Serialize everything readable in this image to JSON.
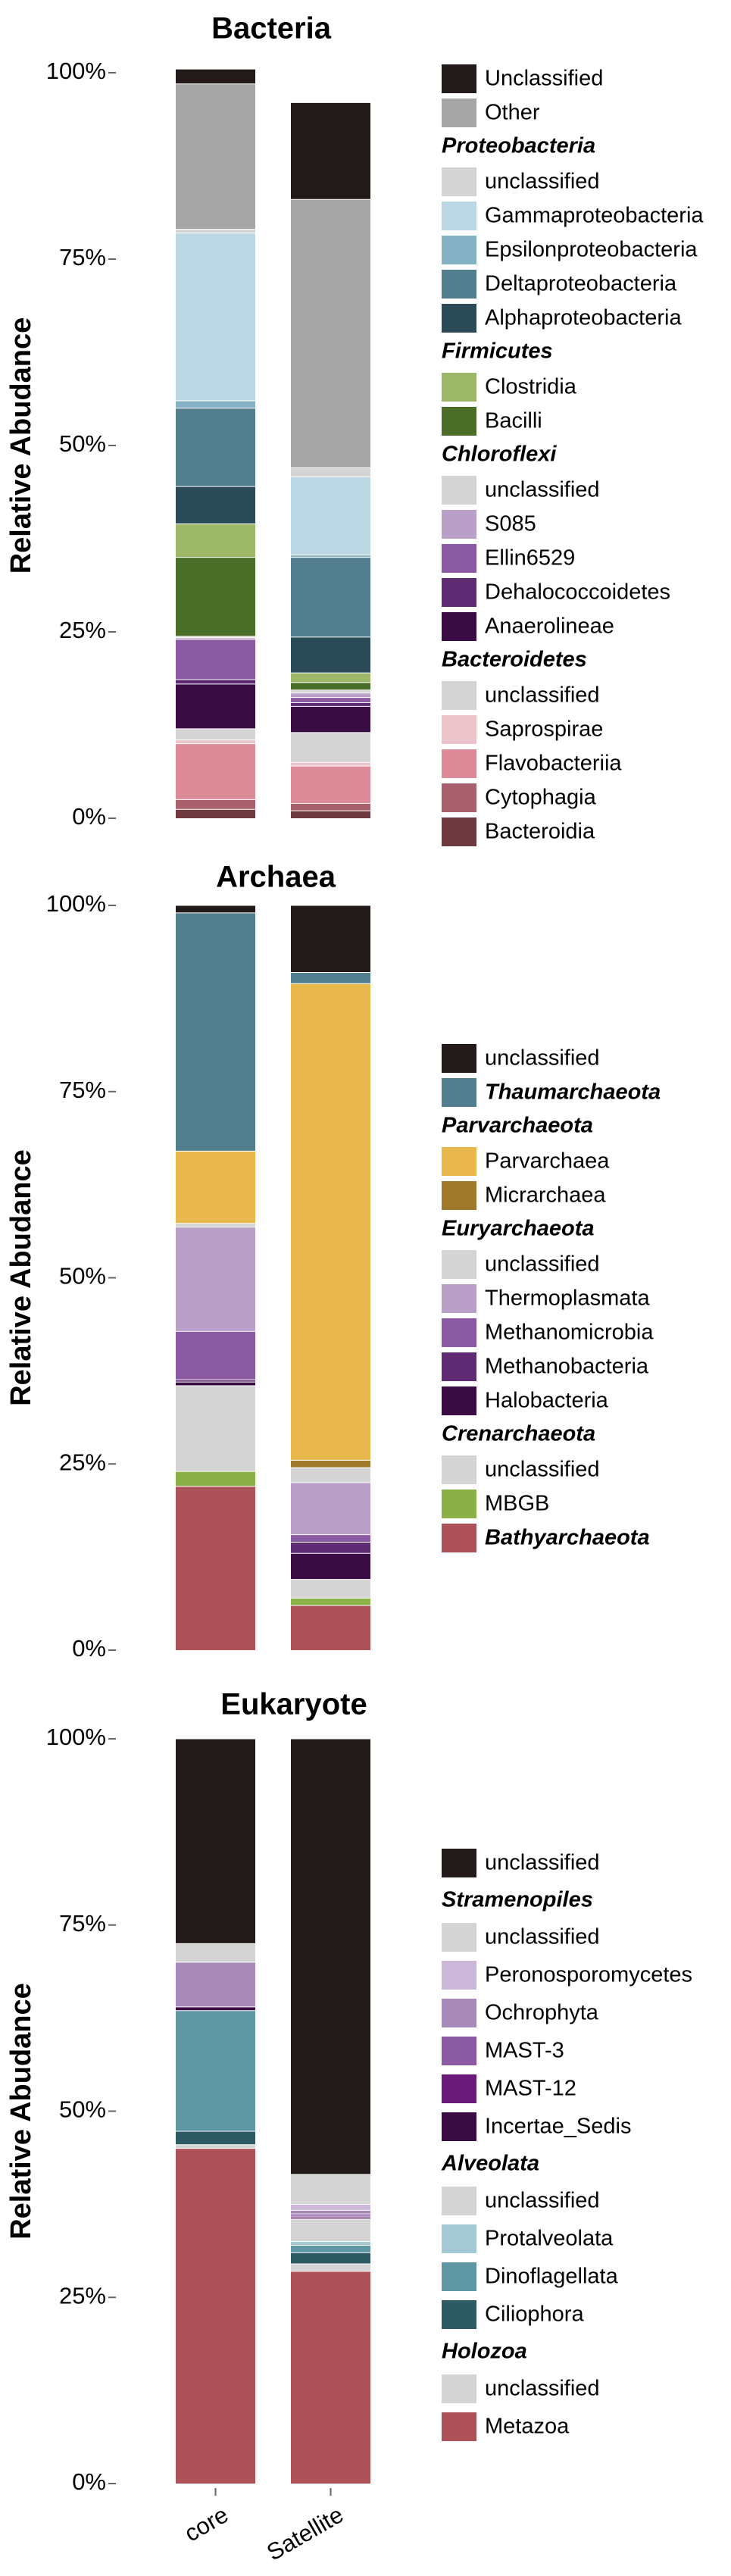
{
  "chart_data": [
    {
      "type": "bar",
      "title": "Bacteria",
      "ylabel": "Relative Abudance",
      "categories": [
        "core",
        "Satellite"
      ],
      "yticks": [
        "0%",
        "25%",
        "50%",
        "75%",
        "100%"
      ],
      "ylim": [
        0,
        100
      ],
      "series": [
        {
          "name": "Bacteroidia",
          "group": "Bacteroidetes",
          "color": "#6e3a40",
          "values": [
            1.2,
            1.0
          ]
        },
        {
          "name": "Cytophagia",
          "group": "Bacteroidetes",
          "color": "#a8606c",
          "values": [
            1.3,
            1.0
          ]
        },
        {
          "name": "Flavobacteriia",
          "group": "Bacteroidetes",
          "color": "#dc8a98",
          "values": [
            7.5,
            5.0
          ]
        },
        {
          "name": "Saprospirae",
          "group": "Bacteroidetes",
          "color": "#ecc5cc",
          "values": [
            0.5,
            0.5
          ]
        },
        {
          "name": "unclassified",
          "group": "Bacteroidetes",
          "color": "#d4d4d4",
          "values": [
            1.5,
            4.0
          ]
        },
        {
          "name": "Anaerolineae",
          "group": "Chloroflexi",
          "color": "#3a0c44",
          "values": [
            6.0,
            3.5
          ]
        },
        {
          "name": "Dehalococcoidetes",
          "group": "Chloroflexi",
          "color": "#5e2a72",
          "values": [
            0.6,
            0.5
          ]
        },
        {
          "name": "Ellin6529",
          "group": "Chloroflexi",
          "color": "#8a5aa2",
          "values": [
            5.4,
            0.7
          ]
        },
        {
          "name": "S085",
          "group": "Chloroflexi",
          "color": "#b8a0c8",
          "values": [
            0.2,
            0.6
          ]
        },
        {
          "name": "unclassified",
          "group": "Chloroflexi",
          "color": "#d4d4d4",
          "values": [
            0.2,
            0.4
          ]
        },
        {
          "name": "Bacilli",
          "group": "Firmicutes",
          "color": "#4a6e28",
          "values": [
            10.6,
            1.0
          ]
        },
        {
          "name": "Clostridia",
          "group": "Firmicutes",
          "color": "#9cb868",
          "values": [
            4.5,
            1.3
          ]
        },
        {
          "name": "Alphaproteobacteria",
          "group": "Proteobacteria",
          "color": "#2a4a58",
          "values": [
            5.0,
            4.8
          ]
        },
        {
          "name": "Deltaproteobacteria",
          "group": "Proteobacteria",
          "color": "#527e90",
          "values": [
            10.5,
            10.7
          ]
        },
        {
          "name": "Epsilonproteobacteria",
          "group": "Proteobacteria",
          "color": "#84b2c4",
          "values": [
            1.0,
            0.3
          ]
        },
        {
          "name": "Gammaproteobacteria",
          "group": "Proteobacteria",
          "color": "#bcd8e4",
          "values": [
            22.5,
            10.5
          ]
        },
        {
          "name": "unclassified",
          "group": "Proteobacteria",
          "color": "#d4d4d4",
          "values": [
            0.5,
            1.2
          ]
        },
        {
          "name": "Other",
          "group": "",
          "color": "#a6a6a6",
          "values": [
            19.5,
            36.0
          ]
        },
        {
          "name": "Unclassified",
          "group": "",
          "color": "#221a18",
          "values": [
            2.0,
            13.0
          ]
        }
      ]
    },
    {
      "type": "bar",
      "title": "Archaea",
      "ylabel": "Relative Abudance",
      "categories": [
        "core",
        "Satellite"
      ],
      "yticks": [
        "0%",
        "25%",
        "50%",
        "75%",
        "100%"
      ],
      "ylim": [
        0,
        100
      ],
      "series": [
        {
          "name": "Bathyarchaeota",
          "group": "",
          "emphasis": true,
          "color": "#ad5258",
          "values": [
            22.0,
            6.0
          ]
        },
        {
          "name": "MBGB",
          "group": "Crenarchaeota",
          "color": "#8cb048",
          "values": [
            2.0,
            1.0
          ]
        },
        {
          "name": "unclassified",
          "group": "Crenarchaeota",
          "color": "#d4d4d4",
          "values": [
            11.5,
            2.5
          ]
        },
        {
          "name": "Halobacteria",
          "group": "Euryarchaeota",
          "color": "#3a0c44",
          "values": [
            0.5,
            3.5
          ]
        },
        {
          "name": "Methanobacteria",
          "group": "Euryarchaeota",
          "color": "#5e2a72",
          "values": [
            0.3,
            1.5
          ]
        },
        {
          "name": "Methanomicrobia",
          "group": "Euryarchaeota",
          "color": "#8a5aa2",
          "values": [
            6.5,
            1.0
          ]
        },
        {
          "name": "Thermoplasmata",
          "group": "Euryarchaeota",
          "color": "#b8a0c8",
          "values": [
            14.0,
            7.0
          ]
        },
        {
          "name": "unclassified",
          "group": "Euryarchaeota",
          "color": "#d4d4d4",
          "values": [
            0.5,
            2.0
          ]
        },
        {
          "name": "Micrarchaea",
          "group": "Parvarchaeota",
          "color": "#a07a2a",
          "values": [
            0.0,
            1.0
          ]
        },
        {
          "name": "Parvarchaea",
          "group": "Parvarchaeota",
          "color": "#e8b84c",
          "values": [
            9.7,
            64.0
          ]
        },
        {
          "name": "Thaumarchaeota",
          "group": "",
          "emphasis": true,
          "color": "#527e90",
          "values": [
            32.0,
            1.5
          ]
        },
        {
          "name": "unclassified",
          "group": "",
          "color": "#221a18",
          "values": [
            1.0,
            9.0
          ]
        }
      ]
    },
    {
      "type": "bar",
      "title": "Eukaryote",
      "ylabel": "Relative Abudance",
      "categories": [
        "core",
        "Satellite"
      ],
      "yticks": [
        "0%",
        "25%",
        "50%",
        "75%",
        "100%"
      ],
      "ylim": [
        0,
        100
      ],
      "series": [
        {
          "name": "Metazoa",
          "group": "Holozoa",
          "color": "#ad5258",
          "values": [
            45.0,
            28.5
          ]
        },
        {
          "name": "unclassified",
          "group": "Holozoa",
          "color": "#d4d4d4",
          "values": [
            0.5,
            1.0
          ]
        },
        {
          "name": "Ciliophora",
          "group": "Alveolata",
          "color": "#2e5a64",
          "values": [
            1.8,
            1.5
          ]
        },
        {
          "name": "Dinoflagellata",
          "group": "Alveolata",
          "color": "#5e96a4",
          "values": [
            16.2,
            1.0
          ]
        },
        {
          "name": "Protalveolata",
          "group": "Alveolata",
          "color": "#a4c8d4",
          "values": [
            0.0,
            0.5
          ]
        },
        {
          "name": "unclassified",
          "group": "Alveolata",
          "color": "#d4d4d4",
          "values": [
            0.0,
            3.0
          ]
        },
        {
          "name": "Incertae_Sedis",
          "group": "Stramenopiles",
          "color": "#3a0c44",
          "values": [
            0.5,
            0.2
          ]
        },
        {
          "name": "MAST-12",
          "group": "Stramenopiles",
          "color": "#6a1a78",
          "values": [
            0.0,
            0.2
          ]
        },
        {
          "name": "MAST-3",
          "group": "Stramenopiles",
          "color": "#8a5aa2",
          "values": [
            0.0,
            0.3
          ]
        },
        {
          "name": "Ochrophyta",
          "group": "Stramenopiles",
          "color": "#a88ab8",
          "values": [
            6.0,
            0.5
          ]
        },
        {
          "name": "Peronosporomycetes",
          "group": "Stramenopiles",
          "color": "#cbb8d8",
          "values": [
            0.0,
            0.8
          ]
        },
        {
          "name": "unclassified",
          "group": "Stramenopiles",
          "color": "#d4d4d4",
          "values": [
            2.5,
            4.0
          ]
        },
        {
          "name": "unclassified",
          "group": "",
          "color": "#221a18",
          "values": [
            27.5,
            58.5
          ]
        }
      ]
    }
  ],
  "legends": [
    {
      "blocks": [
        {
          "items": [
            {
              "label": "Unclassified",
              "color": "#221a18"
            },
            {
              "label": "Other",
              "color": "#a6a6a6"
            }
          ]
        },
        {
          "heading": "Proteobacteria",
          "items": [
            {
              "label": "unclassified",
              "color": "#d4d4d4"
            },
            {
              "label": "Gammaproteobacteria",
              "color": "#bcd8e4"
            },
            {
              "label": "Epsilonproteobacteria",
              "color": "#84b2c4"
            },
            {
              "label": "Deltaproteobacteria",
              "color": "#527e90"
            },
            {
              "label": "Alphaproteobacteria",
              "color": "#2a4a58"
            }
          ]
        },
        {
          "heading": "Firmicutes",
          "items": [
            {
              "label": "Clostridia",
              "color": "#9cb868"
            },
            {
              "label": "Bacilli",
              "color": "#4a6e28"
            }
          ]
        },
        {
          "heading": "Chloroflexi",
          "items": [
            {
              "label": "unclassified",
              "color": "#d4d4d4"
            },
            {
              "label": "S085",
              "color": "#b8a0c8"
            },
            {
              "label": "Ellin6529",
              "color": "#8a5aa2"
            },
            {
              "label": "Dehalococcoidetes",
              "color": "#5e2a72"
            },
            {
              "label": "Anaerolineae",
              "color": "#3a0c44"
            }
          ]
        },
        {
          "heading": "Bacteroidetes",
          "items": [
            {
              "label": "unclassified",
              "color": "#d4d4d4"
            },
            {
              "label": "Saprospirae",
              "color": "#ecc5cc"
            },
            {
              "label": "Flavobacteriia",
              "color": "#dc8a98"
            },
            {
              "label": "Cytophagia",
              "color": "#a8606c"
            },
            {
              "label": "Bacteroidia",
              "color": "#6e3a40"
            }
          ]
        }
      ]
    },
    {
      "blocks": [
        {
          "items": [
            {
              "label": "unclassified",
              "color": "#221a18"
            },
            {
              "label": "Thaumarchaeota",
              "color": "#527e90",
              "emphasis": true
            }
          ]
        },
        {
          "heading": "Parvarchaeota",
          "items": [
            {
              "label": "Parvarchaea",
              "color": "#e8b84c"
            },
            {
              "label": "Micrarchaea",
              "color": "#a07a2a"
            }
          ]
        },
        {
          "heading": "Euryarchaeota",
          "items": [
            {
              "label": "unclassified",
              "color": "#d4d4d4"
            },
            {
              "label": "Thermoplasmata",
              "color": "#b8a0c8"
            },
            {
              "label": "Methanomicrobia",
              "color": "#8a5aa2"
            },
            {
              "label": "Methanobacteria",
              "color": "#5e2a72"
            },
            {
              "label": "Halobacteria",
              "color": "#3a0c44"
            }
          ]
        },
        {
          "heading": "Crenarchaeota",
          "items": [
            {
              "label": "unclassified",
              "color": "#d4d4d4"
            },
            {
              "label": "MBGB",
              "color": "#8cb048"
            },
            {
              "label": "Bathyarchaeota",
              "color": "#ad5258",
              "emphasis": true
            }
          ]
        }
      ]
    },
    {
      "blocks": [
        {
          "items": [
            {
              "label": "unclassified",
              "color": "#221a18"
            }
          ]
        },
        {
          "heading": "Stramenopiles",
          "items": [
            {
              "label": "unclassified",
              "color": "#d4d4d4"
            },
            {
              "label": "Peronosporomycetes",
              "color": "#cbb8d8"
            },
            {
              "label": "Ochrophyta",
              "color": "#a88ab8"
            },
            {
              "label": "MAST-3",
              "color": "#8a5aa2"
            },
            {
              "label": "MAST-12",
              "color": "#6a1a78"
            },
            {
              "label": "Incertae_Sedis",
              "color": "#3a0c44"
            }
          ]
        },
        {
          "heading": "Alveolata",
          "items": [
            {
              "label": "unclassified",
              "color": "#d4d4d4"
            },
            {
              "label": "Protalveolata",
              "color": "#a4c8d4"
            },
            {
              "label": "Dinoflagellata",
              "color": "#5e96a4"
            },
            {
              "label": "Ciliophora",
              "color": "#2e5a64"
            }
          ]
        },
        {
          "heading": "Holozoa",
          "items": [
            {
              "label": "unclassified",
              "color": "#d4d4d4"
            },
            {
              "label": "Metazoa",
              "color": "#ad5258"
            }
          ]
        }
      ]
    }
  ]
}
